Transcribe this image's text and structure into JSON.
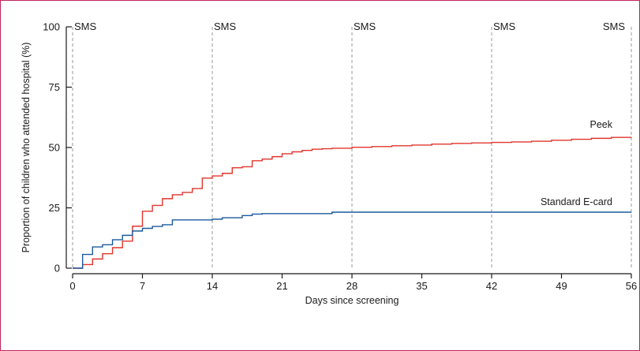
{
  "chart_data": {
    "type": "line",
    "step": true,
    "xlabel": "Days since screening",
    "ylabel": "Proportion of children who attended hospital (%)",
    "xlim": [
      0,
      56
    ],
    "ylim": [
      0,
      100
    ],
    "xticks": [
      0,
      7,
      14,
      21,
      28,
      35,
      42,
      49,
      56
    ],
    "yticks": [
      0,
      25,
      50,
      75,
      100
    ],
    "grid": false,
    "legend": "none",
    "markers": {
      "label": "SMS",
      "days": [
        0,
        14,
        28,
        42,
        56
      ],
      "color": "#9a9a9a"
    },
    "series": [
      {
        "name": "Peek",
        "color": "#e1352c",
        "x": [
          1,
          2,
          3,
          4,
          5,
          6,
          7,
          8,
          9,
          10,
          11,
          12,
          13,
          14,
          15,
          16,
          17,
          18,
          19,
          20,
          21,
          22,
          23,
          24,
          25,
          26,
          28,
          30,
          32,
          34,
          36,
          38,
          40,
          42,
          44,
          46,
          48,
          50,
          52,
          54,
          56
        ],
        "y": [
          1.5,
          3.8,
          6,
          8.5,
          11.2,
          17.4,
          23.6,
          26,
          28.8,
          30.4,
          31.4,
          33,
          37.3,
          38.2,
          39.3,
          41.6,
          42,
          44.5,
          45.2,
          46.2,
          47.4,
          48.2,
          48.8,
          49.3,
          49.5,
          49.7,
          50.1,
          50.4,
          50.7,
          51.0,
          51.4,
          51.7,
          51.9,
          52.1,
          52.3,
          52.6,
          53.0,
          53.4,
          53.8,
          54.2,
          54.3
        ]
      },
      {
        "name": "Standard E-card",
        "color": "#1b5a9c",
        "x": [
          1,
          2,
          3,
          4,
          5,
          6,
          7,
          8,
          9,
          10,
          14,
          15,
          17,
          18,
          19,
          26,
          28,
          35,
          42,
          49,
          56
        ],
        "y": [
          5.7,
          8.8,
          9.7,
          11.8,
          13.6,
          15.4,
          16.5,
          17.3,
          18,
          20,
          20.3,
          20.9,
          21.8,
          22.4,
          22.6,
          23.2,
          23.2,
          23.2,
          23.2,
          23.2,
          23.2
        ]
      }
    ]
  }
}
